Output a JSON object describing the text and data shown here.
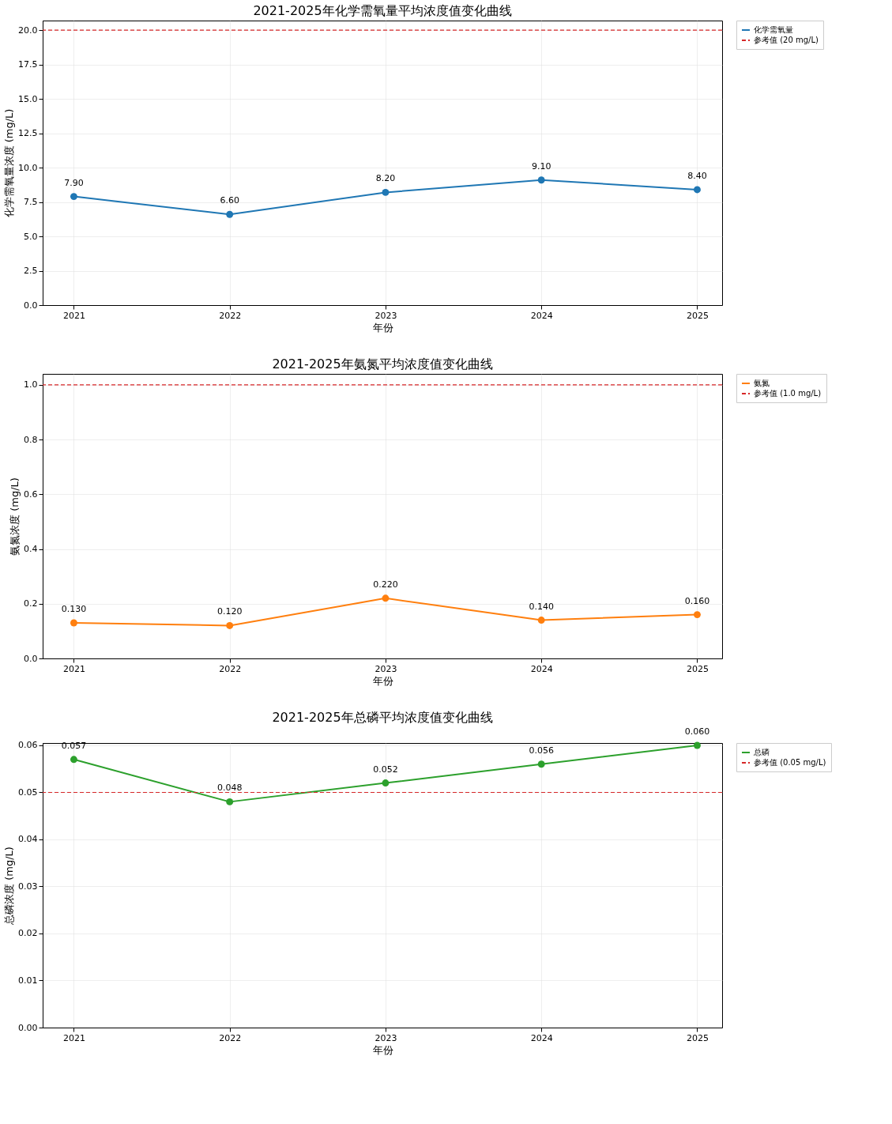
{
  "chart_data": [
    {
      "type": "line",
      "title": "2021-2025年化学需氧量平均浓度值变化曲线",
      "xlabel": "年份",
      "ylabel": "化学需氧量浓度 (mg/L)",
      "x": [
        2021,
        2022,
        2023,
        2024,
        2025
      ],
      "xlim": [
        2020.8,
        2025.16
      ],
      "xticks": [
        2021,
        2022,
        2023,
        2024,
        2025
      ],
      "ylim": [
        0,
        20.7
      ],
      "yticks": [
        {
          "value": 0,
          "label": "0.0"
        },
        {
          "value": 2.5,
          "label": "2.5"
        },
        {
          "value": 5,
          "label": "5.0"
        },
        {
          "value": 7.5,
          "label": "7.5"
        },
        {
          "value": 10,
          "label": "10.0"
        },
        {
          "value": 12.5,
          "label": "12.5"
        },
        {
          "value": 15,
          "label": "15.0"
        },
        {
          "value": 17.5,
          "label": "17.5"
        },
        {
          "value": 20,
          "label": "20.0"
        }
      ],
      "series": [
        {
          "name": "化学需氧量",
          "color": "#1f77b4",
          "values": [
            7.9,
            6.6,
            8.2,
            9.1,
            8.4
          ],
          "value_labels": [
            "7.90",
            "6.60",
            "8.20",
            "9.10",
            "8.40"
          ]
        }
      ],
      "ref_lines": [
        {
          "axis": "y",
          "value": 20,
          "label": "参考值 (20 mg/L)",
          "color": "#d62728",
          "line_style": "dashed"
        }
      ],
      "grid": true,
      "legend": "right",
      "marker": "circle",
      "line_style": "solid"
    },
    {
      "type": "line",
      "title": "2021-2025年氨氮平均浓度值变化曲线",
      "xlabel": "年份",
      "ylabel": "氨氮浓度 (mg/L)",
      "x": [
        2021,
        2022,
        2023,
        2024,
        2025
      ],
      "xlim": [
        2020.8,
        2025.16
      ],
      "xticks": [
        2021,
        2022,
        2023,
        2024,
        2025
      ],
      "ylim": [
        0,
        1.04
      ],
      "yticks": [
        {
          "value": 0,
          "label": "0.0"
        },
        {
          "value": 0.2,
          "label": "0.2"
        },
        {
          "value": 0.4,
          "label": "0.4"
        },
        {
          "value": 0.6,
          "label": "0.6"
        },
        {
          "value": 0.8,
          "label": "0.8"
        },
        {
          "value": 1,
          "label": "1.0"
        }
      ],
      "series": [
        {
          "name": "氨氮",
          "color": "#ff7f0e",
          "values": [
            0.13,
            0.12,
            0.22,
            0.14,
            0.16
          ],
          "value_labels": [
            "0.130",
            "0.120",
            "0.220",
            "0.140",
            "0.160"
          ]
        }
      ],
      "ref_lines": [
        {
          "axis": "y",
          "value": 1.0,
          "label": "参考值 (1.0 mg/L)",
          "color": "#d62728",
          "line_style": "dashed"
        }
      ],
      "grid": true,
      "legend": "right",
      "marker": "circle",
      "line_style": "solid"
    },
    {
      "type": "line",
      "title": "2021-2025年总磷平均浓度值变化曲线",
      "xlabel": "年份",
      "ylabel": "总磷浓度 (mg/L)",
      "x": [
        2021,
        2022,
        2023,
        2024,
        2025
      ],
      "xlim": [
        2020.8,
        2025.16
      ],
      "xticks": [
        2021,
        2022,
        2023,
        2024,
        2025
      ],
      "ylim": [
        0,
        0.0605
      ],
      "yticks": [
        {
          "value": 0,
          "label": "0.00"
        },
        {
          "value": 0.01,
          "label": "0.01"
        },
        {
          "value": 0.02,
          "label": "0.02"
        },
        {
          "value": 0.03,
          "label": "0.03"
        },
        {
          "value": 0.04,
          "label": "0.04"
        },
        {
          "value": 0.05,
          "label": "0.05"
        },
        {
          "value": 0.06,
          "label": "0.06"
        }
      ],
      "series": [
        {
          "name": "总磷",
          "color": "#2ca02c",
          "values": [
            0.057,
            0.048,
            0.052,
            0.056,
            0.06
          ],
          "value_labels": [
            "0.057",
            "0.048",
            "0.052",
            "0.056",
            "0.060"
          ]
        }
      ],
      "ref_lines": [
        {
          "axis": "y",
          "value": 0.05,
          "label": "参考值 (0.05 mg/L)",
          "color": "#d62728",
          "line_style": "dashed"
        }
      ],
      "grid": true,
      "legend": "right",
      "marker": "circle",
      "line_style": "solid"
    }
  ]
}
